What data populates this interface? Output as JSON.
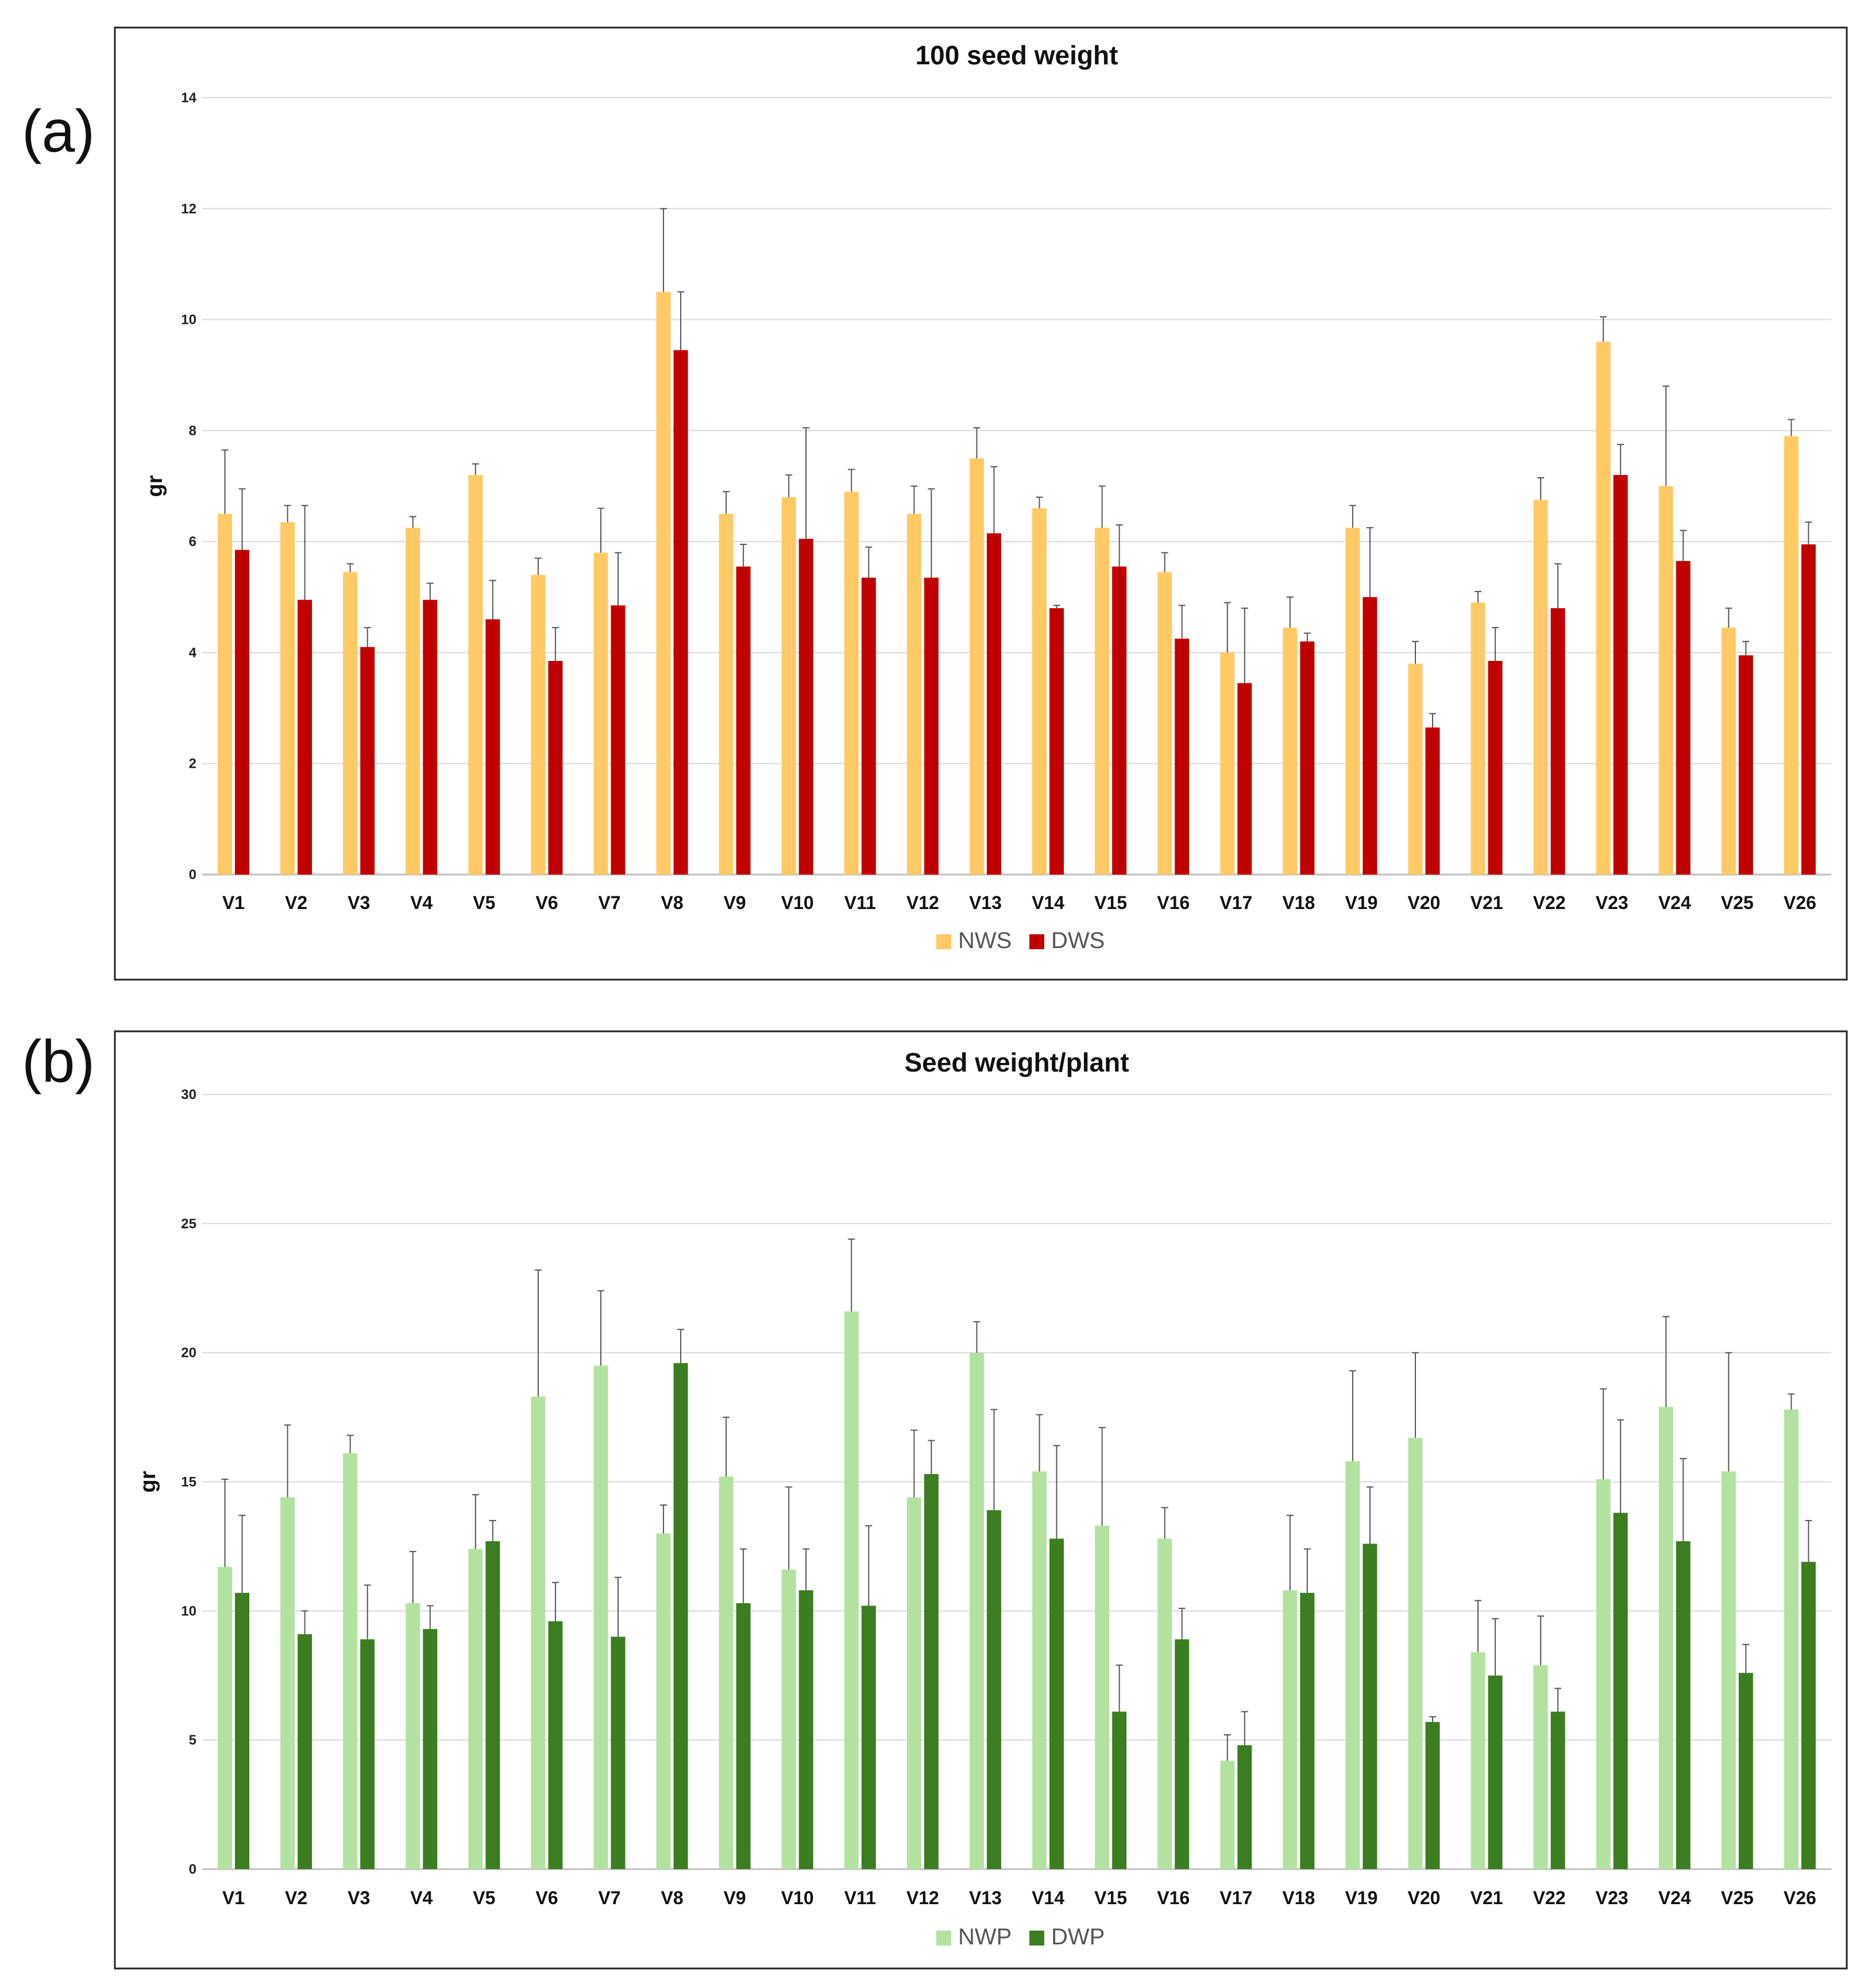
{
  "panels": [
    {
      "label": "(a)"
    },
    {
      "label": "(b)"
    }
  ],
  "chart_data": [
    {
      "type": "bar",
      "title": "100 seed weight",
      "xlabel": "",
      "ylabel": "gr",
      "ylim": [
        0,
        14
      ],
      "yticks": [
        0,
        2,
        4,
        6,
        8,
        10,
        12,
        14
      ],
      "grid": true,
      "legend_position": "bottom-center",
      "categories": [
        "V1",
        "V2",
        "V3",
        "V4",
        "V5",
        "V6",
        "V7",
        "V8",
        "V9",
        "V10",
        "V11",
        "V12",
        "V13",
        "V14",
        "V15",
        "V16",
        "V17",
        "V18",
        "V19",
        "V20",
        "V21",
        "V22",
        "V23",
        "V24",
        "V25",
        "V26"
      ],
      "series": [
        {
          "name": "NWS",
          "color": "#FFC966",
          "values": [
            6.5,
            6.35,
            5.45,
            6.25,
            7.2,
            5.4,
            5.8,
            10.5,
            6.5,
            6.8,
            6.9,
            6.5,
            7.5,
            6.6,
            6.25,
            5.45,
            4.0,
            4.45,
            6.25,
            3.8,
            4.9,
            6.75,
            9.6,
            7.0,
            4.45,
            7.9
          ],
          "error_upper": [
            7.65,
            6.65,
            5.6,
            6.45,
            7.4,
            5.7,
            6.6,
            12.0,
            6.9,
            7.2,
            7.3,
            7.0,
            8.05,
            6.8,
            7.0,
            5.8,
            4.9,
            5.0,
            6.65,
            4.2,
            5.1,
            7.15,
            10.05,
            8.8,
            4.8,
            8.2
          ]
        },
        {
          "name": "DWS",
          "color": "#C00000",
          "values": [
            5.85,
            4.95,
            4.1,
            4.95,
            4.6,
            3.85,
            4.85,
            9.45,
            5.55,
            6.05,
            5.35,
            5.35,
            6.15,
            4.8,
            5.55,
            4.25,
            3.45,
            4.2,
            5.0,
            2.65,
            3.85,
            4.8,
            7.2,
            5.65,
            3.95,
            5.95
          ],
          "error_upper": [
            6.95,
            6.65,
            4.45,
            5.25,
            5.3,
            4.45,
            5.8,
            10.5,
            5.95,
            8.05,
            5.9,
            6.95,
            7.35,
            4.85,
            6.3,
            4.85,
            4.8,
            4.35,
            6.25,
            2.9,
            4.45,
            5.6,
            7.75,
            6.2,
            4.2,
            6.35
          ]
        }
      ]
    },
    {
      "type": "bar",
      "title": "Seed weight/plant",
      "xlabel": "",
      "ylabel": "gr",
      "ylim": [
        0,
        30
      ],
      "yticks": [
        0,
        5,
        10,
        15,
        20,
        25,
        30
      ],
      "grid": true,
      "legend_position": "bottom-center",
      "categories": [
        "V1",
        "V2",
        "V3",
        "V4",
        "V5",
        "V6",
        "V7",
        "V8",
        "V9",
        "V10",
        "V11",
        "V12",
        "V13",
        "V14",
        "V15",
        "V16",
        "V17",
        "V18",
        "V19",
        "V20",
        "V21",
        "V22",
        "V23",
        "V24",
        "V25",
        "V26"
      ],
      "series": [
        {
          "name": "NWP",
          "color": "#B3E2A0",
          "values": [
            11.7,
            14.4,
            16.1,
            10.3,
            12.4,
            18.3,
            19.5,
            13.0,
            15.2,
            11.6,
            21.6,
            14.4,
            20.0,
            15.4,
            13.3,
            12.8,
            4.2,
            10.8,
            15.8,
            16.7,
            8.4,
            7.9,
            15.1,
            17.9,
            15.4,
            17.8
          ],
          "error_upper": [
            15.1,
            17.2,
            16.8,
            12.3,
            14.5,
            23.2,
            22.4,
            14.1,
            17.5,
            14.8,
            24.4,
            17.0,
            21.2,
            17.6,
            17.1,
            14.0,
            5.2,
            13.7,
            19.3,
            20.0,
            10.4,
            9.8,
            18.6,
            21.4,
            20.0,
            18.4
          ]
        },
        {
          "name": "DWP",
          "color": "#3C7D22",
          "values": [
            10.7,
            9.1,
            8.9,
            9.3,
            12.7,
            9.6,
            9.0,
            19.6,
            10.3,
            10.8,
            10.2,
            15.3,
            13.9,
            12.8,
            6.1,
            8.9,
            4.8,
            10.7,
            12.6,
            5.7,
            7.5,
            6.1,
            13.8,
            12.7,
            7.6,
            11.9
          ],
          "error_upper": [
            13.7,
            10.0,
            11.0,
            10.2,
            13.5,
            11.1,
            11.3,
            20.9,
            12.4,
            12.4,
            13.3,
            16.6,
            17.8,
            16.4,
            7.9,
            10.1,
            6.1,
            12.4,
            14.8,
            5.9,
            9.7,
            7.0,
            17.4,
            15.9,
            8.7,
            13.5
          ]
        }
      ]
    }
  ]
}
